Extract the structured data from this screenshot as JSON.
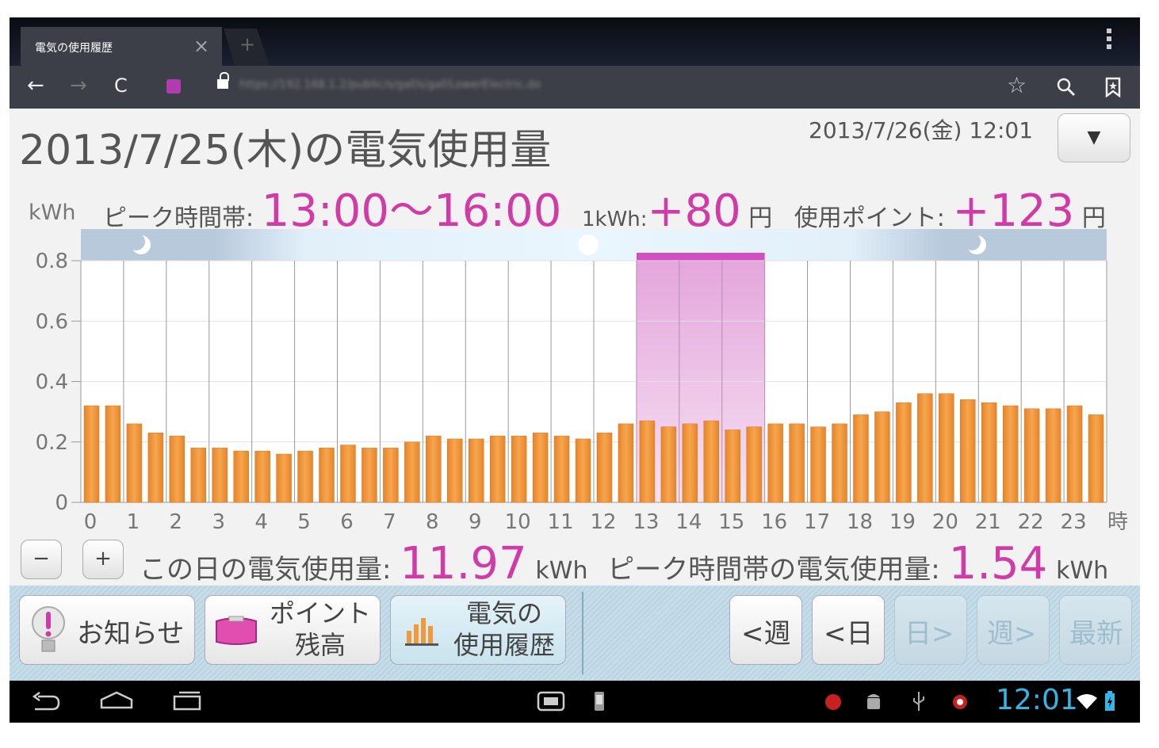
{
  "browser": {
    "tab_title": "電気の使用履歴",
    "tab_close": "×",
    "new_tab": "+",
    "url": "https://192.168.1.2/public/s/gaf/s/gaf/LowerElectric.do"
  },
  "header": {
    "title": "2013/7/25(木)の電気使用量",
    "datetime": "2013/7/26(金) 12:01",
    "dropdown": "▼"
  },
  "peak": {
    "label": "ピーク時間帯:",
    "range": "13:00〜16:00",
    "rate_label": "1kWh:",
    "rate_value": "+80",
    "rate_unit": "円",
    "points_label": "使用ポイント:",
    "points_value": "+123",
    "points_unit": "円"
  },
  "chart_data": {
    "type": "bar",
    "ylabel": "kWh",
    "xlabel": "時",
    "ylim": [
      0,
      0.8
    ],
    "yticks": [
      "0",
      "0.2",
      "0.4",
      "0.6",
      "0.8"
    ],
    "xticks": [
      "0",
      "1",
      "2",
      "3",
      "4",
      "5",
      "6",
      "7",
      "8",
      "9",
      "10",
      "11",
      "12",
      "13",
      "14",
      "15",
      "16",
      "17",
      "18",
      "19",
      "20",
      "21",
      "22",
      "23"
    ],
    "x": [
      0,
      0.5,
      1,
      1.5,
      2,
      2.5,
      3,
      3.5,
      4,
      4.5,
      5,
      5.5,
      6,
      6.5,
      7,
      7.5,
      8,
      8.5,
      9,
      9.5,
      10,
      10.5,
      11,
      11.5,
      12,
      12.5,
      13,
      13.5,
      14,
      14.5,
      15,
      15.5,
      16,
      16.5,
      17,
      17.5,
      18,
      18.5,
      19,
      19.5,
      20,
      20.5,
      21,
      21.5,
      22,
      22.5,
      23,
      23.5
    ],
    "values": [
      0.32,
      0.32,
      0.26,
      0.23,
      0.22,
      0.18,
      0.18,
      0.17,
      0.17,
      0.16,
      0.17,
      0.18,
      0.19,
      0.18,
      0.18,
      0.2,
      0.22,
      0.21,
      0.21,
      0.22,
      0.22,
      0.23,
      0.22,
      0.21,
      0.23,
      0.26,
      0.27,
      0.25,
      0.26,
      0.27,
      0.24,
      0.25,
      0.26,
      0.26,
      0.25,
      0.26,
      0.29,
      0.3,
      0.33,
      0.36,
      0.36,
      0.34,
      0.33,
      0.32,
      0.31,
      0.31,
      0.32,
      0.29
    ],
    "peak_range": [
      13,
      16
    ],
    "bar_color": "#f09a3c",
    "peak_color": "#d14fc0",
    "grid": true
  },
  "summary": {
    "minus": "−",
    "plus": "+",
    "day_label": "この日の電気使用量:",
    "day_value": "11.97",
    "day_unit": "kWh",
    "peak_label": "ピーク時間帯の電気使用量:",
    "peak_value": "1.54",
    "peak_unit": "kWh"
  },
  "toolbar": {
    "notice": "お知らせ",
    "points_line1": "ポイント",
    "points_line2": "残高",
    "history_line1": "電気の",
    "history_line2": "使用履歴",
    "prev_week": "<週",
    "prev_day": "<日",
    "next_day": "日>",
    "next_week": "週>",
    "latest": "最新"
  },
  "system": {
    "clock": "12:01"
  },
  "colors": {
    "accent": "#d13ba8",
    "clock": "#33b5e5"
  }
}
